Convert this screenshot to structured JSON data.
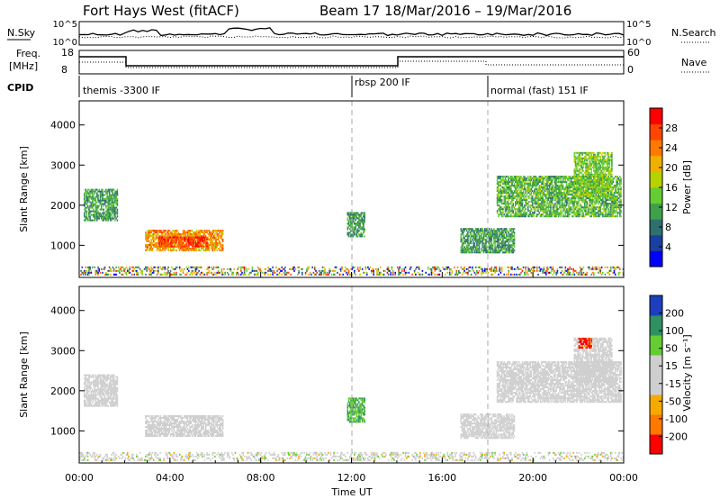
{
  "header": {
    "title_left": "Fort Hays West (fitACF)",
    "title_right": "Beam 17  18/Mar/2016 – 19/Mar/2016"
  },
  "noise_panel": {
    "left_label": "N.Sky",
    "right_label": "N.Search",
    "left_ticks": [
      "10^5",
      "10^0"
    ],
    "right_ticks": [
      "10^5",
      "10^0"
    ]
  },
  "freq_panel": {
    "left_label": "Freq. [MHz]",
    "right_label": "Nave",
    "left_ticks": [
      "18",
      "8"
    ],
    "right_ticks": [
      "60",
      "0"
    ]
  },
  "cpid": {
    "label": "CPID",
    "segments": [
      {
        "name": "themis -3300 IF",
        "start_hour": 0
      },
      {
        "name": "rbsp 200 IF",
        "start_hour": 12
      },
      {
        "name": "normal (fast) 151 IF",
        "start_hour": 18
      }
    ]
  },
  "colors": {
    "power_scale": [
      "#0000ff",
      "#1a3fa0",
      "#2f6f6f",
      "#3fa04a",
      "#66cc33",
      "#b8d200",
      "#f0b000",
      "#ff7a00",
      "#ff4500",
      "#ff0000"
    ],
    "velocity_scale": [
      "#ff0000",
      "#ff7800",
      "#f5aa00",
      "#cfcfcf",
      "#cfcfcf",
      "#66cc33",
      "#2f9060",
      "#1d3fbf"
    ]
  },
  "chart_data": [
    {
      "type": "heatmap",
      "title": "",
      "xlabel": "",
      "ylabel": "Slant Range [km]",
      "xlim": [
        0,
        24
      ],
      "ylim": [
        200,
        4600
      ],
      "yticks": [
        1000,
        2000,
        3000,
        4000
      ],
      "colorbar": {
        "label": "Power [dB]",
        "ticks": [
          "4",
          "8",
          "12",
          "16",
          "20",
          "24",
          "28"
        ],
        "range": [
          0,
          30
        ]
      },
      "regions": [
        {
          "hours": [
            2.9,
            6.3
          ],
          "range_km": [
            850,
            1350
          ],
          "level": 21
        },
        {
          "hours": [
            3.5,
            5.6
          ],
          "range_km": [
            950,
            1200
          ],
          "level": 26
        },
        {
          "hours": [
            0.2,
            1.7
          ],
          "range_km": [
            1600,
            2400
          ],
          "level": 10
        },
        {
          "hours": [
            11.8,
            12.6
          ],
          "range_km": [
            1200,
            1800
          ],
          "level": 10
        },
        {
          "hours": [
            16.8,
            19.2
          ],
          "range_km": [
            800,
            1400
          ],
          "level": 10
        },
        {
          "hours": [
            18.4,
            23.9
          ],
          "range_km": [
            1700,
            2700
          ],
          "level": 12
        },
        {
          "hours": [
            21.8,
            23.5
          ],
          "range_km": [
            2200,
            3300
          ],
          "level": 14
        },
        {
          "hours": [
            0,
            24
          ],
          "range_km": [
            250,
            450
          ],
          "level": 12
        }
      ]
    },
    {
      "type": "heatmap",
      "title": "",
      "xlabel": "Time UT",
      "ylabel": "Slant Range [km]",
      "xlim": [
        0,
        24
      ],
      "ylim": [
        200,
        4600
      ],
      "yticks": [
        1000,
        2000,
        3000,
        4000
      ],
      "xticks": [
        "00:00",
        "04:00",
        "08:00",
        "12:00",
        "16:00",
        "20:00",
        "00:00"
      ],
      "colorbar": {
        "label": "Velocity [m s⁻¹]",
        "ticks": [
          "-200",
          "-100",
          "-50",
          "-15",
          "15",
          "50",
          "100",
          "200"
        ],
        "range": [
          -250,
          250
        ]
      },
      "regions": [
        {
          "hours": [
            2.9,
            6.3
          ],
          "range_km": [
            850,
            1350
          ],
          "level": 0
        },
        {
          "hours": [
            0.2,
            1.7
          ],
          "range_km": [
            1600,
            2400
          ],
          "level": 0
        },
        {
          "hours": [
            11.8,
            12.6
          ],
          "range_km": [
            1200,
            1800
          ],
          "level": 120
        },
        {
          "hours": [
            16.8,
            19.2
          ],
          "range_km": [
            800,
            1400
          ],
          "level": 0
        },
        {
          "hours": [
            18.4,
            23.9
          ],
          "range_km": [
            1700,
            2700
          ],
          "level": 0
        },
        {
          "hours": [
            21.8,
            23.5
          ],
          "range_km": [
            2200,
            3300
          ],
          "level": 0
        },
        {
          "hours": [
            22.0,
            22.6
          ],
          "range_km": [
            3050,
            3300
          ],
          "level": -200
        },
        {
          "hours": [
            0,
            24
          ],
          "range_km": [
            250,
            450
          ],
          "level": 30
        }
      ]
    }
  ]
}
